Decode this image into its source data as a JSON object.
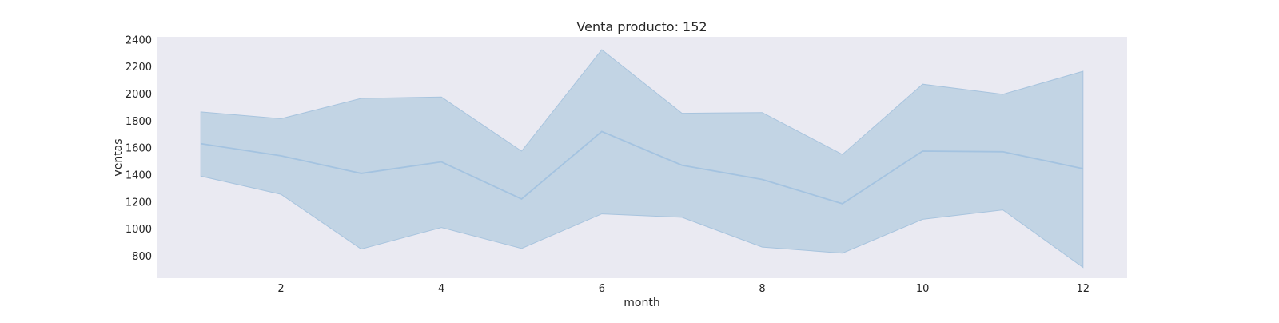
{
  "chart_data": {
    "type": "line",
    "title": "Venta producto: 152",
    "xlabel": "month",
    "ylabel": "ventas",
    "x": [
      1,
      2,
      3,
      4,
      5,
      6,
      7,
      8,
      9,
      10,
      11,
      12
    ],
    "series": [
      {
        "values": [
          1630,
          1540,
          1410,
          1495,
          1220,
          1720,
          1470,
          1365,
          1185,
          1575,
          1570,
          1445
        ],
        "ci_upper": [
          1865,
          1815,
          1965,
          1975,
          1575,
          2325,
          1855,
          1860,
          1550,
          2070,
          1995,
          2165
        ],
        "ci_lower": [
          1390,
          1255,
          850,
          1010,
          855,
          1110,
          1085,
          865,
          820,
          1070,
          1140,
          715
        ]
      }
    ],
    "xlim": [
      0.45,
      12.55
    ],
    "ylim": [
      635,
      2420
    ],
    "xticks": [
      2,
      4,
      6,
      8,
      10,
      12
    ],
    "yticks": [
      800,
      1000,
      1200,
      1400,
      1600,
      1800,
      2000,
      2200,
      2400
    ],
    "grid": false,
    "colors": {
      "plot_background": "#eaeaf2",
      "line": "#a4c3e0",
      "band_fill": "#c2d4e4",
      "band_edge": "#a8c4de"
    }
  }
}
